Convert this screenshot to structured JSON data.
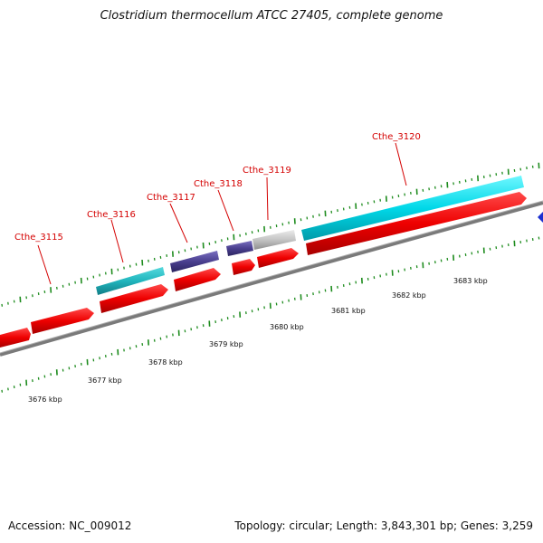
{
  "title": "Clostridium thermocellum ATCC 27405, complete genome",
  "footer": {
    "accession": "Accession: NC_009012",
    "summary": "Topology: circular; Length: 3,843,301 bp; Genes: 3,259"
  },
  "colors": {
    "cds": "#ee0000",
    "rna": "#00d8e8",
    "trna": "#4a3f8f",
    "misc": "#bdbdbd",
    "backbone": "#808080",
    "tick": "#1e8c1e",
    "label": "#d40000"
  },
  "genes": [
    {
      "name": "Cthe_3115"
    },
    {
      "name": "Cthe_3116"
    },
    {
      "name": "Cthe_3117"
    },
    {
      "name": "Cthe_3118"
    },
    {
      "name": "Cthe_3119"
    },
    {
      "name": "Cthe_3120"
    }
  ],
  "kbp_labels": [
    "3676 kbp",
    "3677 kbp",
    "3678 kbp",
    "3679 kbp",
    "3680 kbp",
    "3681 kbp",
    "3682 kbp",
    "3683 kbp"
  ]
}
